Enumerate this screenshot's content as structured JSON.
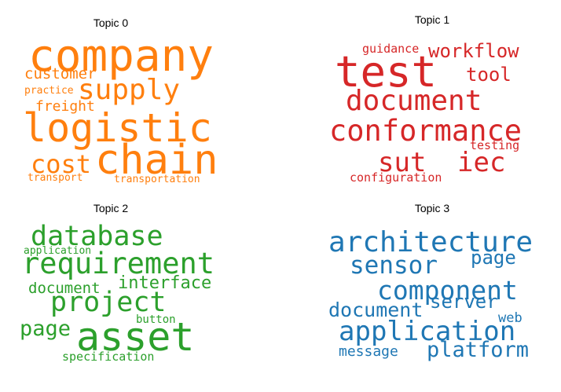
{
  "chart_data": {
    "type": "wordcloud",
    "panels": [
      {
        "title": "Topic 0",
        "color": "#ff7f0e",
        "words": [
          "company",
          "customer",
          "supply",
          "practice",
          "freight",
          "logistic",
          "cost",
          "chain",
          "transport",
          "transportation"
        ]
      },
      {
        "title": "Topic 1",
        "color": "#d62728",
        "words": [
          "guidance",
          "workflow",
          "test",
          "tool",
          "document",
          "conformance",
          "testing",
          "sut",
          "iec",
          "configuration"
        ]
      },
      {
        "title": "Topic 2",
        "color": "#2ca02c",
        "words": [
          "database",
          "application",
          "requirement",
          "document",
          "interface",
          "project",
          "page",
          "button",
          "asset",
          "specification"
        ]
      },
      {
        "title": "Topic 3",
        "color": "#1f77b4",
        "words": [
          "architecture",
          "sensor",
          "page",
          "component",
          "document",
          "server",
          "web",
          "application",
          "message",
          "platform"
        ]
      }
    ]
  }
}
